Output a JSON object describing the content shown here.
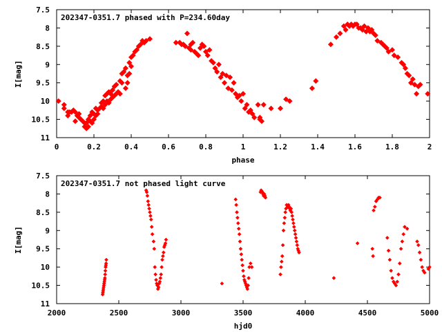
{
  "chart_data": [
    {
      "type": "scatter",
      "title": "202347-0351.7 phased with P=234.60day",
      "xlabel": "phase",
      "ylabel": "I[mag]",
      "xlim": [
        0,
        2
      ],
      "ylim": [
        11,
        7.5
      ],
      "y_inverted": true,
      "x_ticks": [
        "0",
        "0.2",
        "0.4",
        "0.6",
        "0.8",
        "1",
        "1.2",
        "1.4",
        "1.6",
        "1.8",
        "2"
      ],
      "x_tick_values": [
        0,
        0.2,
        0.4,
        0.6,
        0.8,
        1.0,
        1.2,
        1.4,
        1.6,
        1.8,
        2.0
      ],
      "y_ticks": [
        "7.5",
        "8",
        "8.5",
        "9",
        "9.5",
        "10",
        "10.5",
        "11"
      ],
      "y_tick_values": [
        7.5,
        8,
        8.5,
        9,
        9.5,
        10,
        10.5,
        11
      ],
      "grid": false,
      "marker": "filled-diamond",
      "color": "#ff0000",
      "series": [
        {
          "x": [
            0.01,
            0.04,
            0.04,
            0.06,
            0.06,
            0.07,
            0.08,
            0.09,
            0.1,
            0.1,
            0.11,
            0.12,
            0.12,
            0.13,
            0.14,
            0.15,
            0.15,
            0.16,
            0.16,
            0.17,
            0.17,
            0.18,
            0.18,
            0.19,
            0.19,
            0.2,
            0.2,
            0.21,
            0.21,
            0.22,
            0.22,
            0.23,
            0.24,
            0.24,
            0.25,
            0.25,
            0.26,
            0.26,
            0.27,
            0.27,
            0.28,
            0.28,
            0.29,
            0.29,
            0.3,
            0.3,
            0.31,
            0.31,
            0.32,
            0.32,
            0.33,
            0.34,
            0.34,
            0.35,
            0.35,
            0.36,
            0.37,
            0.37,
            0.38,
            0.38,
            0.39,
            0.39,
            0.4,
            0.4,
            0.41,
            0.42,
            0.43,
            0.44,
            0.45,
            0.46,
            0.47,
            0.48,
            0.5,
            0.64,
            0.66,
            0.67,
            0.68,
            0.69,
            0.7,
            0.71,
            0.72,
            0.72,
            0.73,
            0.74,
            0.75,
            0.76,
            0.77,
            0.78,
            0.79,
            0.8,
            0.81,
            0.82,
            0.83,
            0.84,
            0.85,
            0.86,
            0.87,
            0.88,
            0.89,
            0.9,
            0.91,
            0.92,
            0.93,
            0.94,
            0.95,
            0.96,
            0.97,
            0.98,
            0.99,
            1.0,
            1.01,
            1.02,
            1.03,
            1.04,
            1.05,
            1.06,
            1.08,
            1.09,
            1.09,
            1.1,
            1.11,
            1.15,
            1.2,
            1.23,
            1.25,
            1.37,
            1.39,
            1.47,
            1.5,
            1.52,
            1.54,
            1.55,
            1.56,
            1.57,
            1.58,
            1.59,
            1.6,
            1.61,
            1.62,
            1.63,
            1.64,
            1.65,
            1.66,
            1.67,
            1.68,
            1.69,
            1.7,
            1.71,
            1.72,
            1.74,
            1.75,
            1.76,
            1.77,
            1.78,
            1.8,
            1.81,
            1.83,
            1.85,
            1.86,
            1.87,
            1.88,
            1.89,
            1.9,
            1.91,
            1.92,
            1.93,
            1.94,
            1.95,
            1.99
          ],
          "y": [
            10.0,
            10.1,
            10.2,
            10.3,
            10.4,
            10.3,
            10.3,
            10.25,
            10.3,
            10.55,
            10.4,
            10.45,
            10.35,
            10.5,
            10.55,
            10.6,
            10.7,
            10.75,
            10.6,
            10.5,
            10.7,
            10.4,
            10.55,
            10.3,
            10.6,
            10.35,
            10.5,
            10.2,
            10.4,
            10.25,
            10.35,
            10.2,
            10.15,
            10.05,
            10.0,
            10.2,
            9.85,
            10.1,
            9.8,
            10.0,
            9.75,
            10.05,
            9.8,
            9.95,
            9.7,
            9.9,
            9.6,
            9.85,
            9.55,
            9.8,
            9.75,
            9.45,
            9.8,
            9.25,
            9.5,
            9.2,
            9.65,
            9.1,
            9.5,
            9.3,
            8.95,
            9.25,
            8.8,
            9.05,
            8.75,
            8.65,
            8.6,
            8.5,
            8.45,
            8.35,
            8.4,
            8.35,
            8.3,
            8.4,
            8.4,
            8.45,
            8.45,
            8.5,
            8.15,
            8.55,
            8.45,
            8.6,
            8.4,
            8.65,
            8.7,
            8.75,
            8.55,
            8.45,
            8.5,
            8.65,
            8.75,
            8.6,
            8.9,
            8.95,
            9.1,
            9.2,
            9.0,
            9.35,
            9.25,
            9.5,
            9.3,
            9.65,
            9.35,
            9.7,
            9.5,
            9.8,
            9.9,
            9.85,
            10.0,
            9.8,
            10.2,
            10.1,
            10.3,
            10.25,
            10.35,
            10.45,
            10.1,
            10.5,
            10.45,
            10.55,
            10.1,
            10.2,
            10.2,
            9.95,
            10.0,
            9.65,
            9.45,
            8.45,
            8.25,
            8.15,
            7.95,
            8.05,
            7.9,
            7.95,
            7.9,
            7.95,
            7.9,
            7.9,
            8.0,
            8.0,
            8.05,
            7.95,
            8.1,
            8.0,
            8.1,
            8.05,
            8.15,
            8.2,
            8.35,
            8.4,
            8.45,
            8.5,
            8.55,
            8.65,
            8.6,
            8.75,
            8.8,
            8.95,
            9.0,
            9.1,
            9.25,
            9.3,
            9.5,
            9.4,
            9.55,
            9.8,
            9.6,
            9.55,
            9.8
          ]
        }
      ]
    },
    {
      "type": "scatter",
      "title": "202347-0351.7 not phased light curve",
      "xlabel": "hjd0",
      "ylabel": "I[mag]",
      "xlim": [
        2000,
        5000
      ],
      "ylim": [
        11,
        7.5
      ],
      "y_inverted": true,
      "x_ticks": [
        "2000",
        "2500",
        "3000",
        "3500",
        "4000",
        "4500",
        "5000"
      ],
      "x_tick_values": [
        2000,
        2500,
        3000,
        3500,
        4000,
        4500,
        5000
      ],
      "y_ticks": [
        "7.5",
        "8",
        "8.5",
        "9",
        "9.5",
        "10",
        "10.5",
        "11"
      ],
      "y_tick_values": [
        7.5,
        8,
        8.5,
        9,
        9.5,
        10,
        10.5,
        11
      ],
      "grid": false,
      "marker": "small-diamond",
      "color": "#ff0000",
      "series": [
        {
          "x": [
            2370,
            2372,
            2374,
            2376,
            2378,
            2380,
            2382,
            2384,
            2386,
            2388,
            2390,
            2392,
            2394,
            2396,
            2398,
            2400,
            2720,
            2725,
            2730,
            2735,
            2740,
            2745,
            2750,
            2755,
            2760,
            2765,
            2770,
            2780,
            2785,
            2790,
            2795,
            2800,
            2805,
            2810,
            2815,
            2820,
            2825,
            2830,
            2835,
            2840,
            2845,
            2850,
            2855,
            2860,
            2865,
            2870,
            2875,
            2880,
            3330,
            3440,
            3445,
            3450,
            3455,
            3460,
            3465,
            3470,
            3475,
            3480,
            3485,
            3490,
            3495,
            3500,
            3505,
            3510,
            3515,
            3520,
            3525,
            3530,
            3535,
            3540,
            3545,
            3550,
            3560,
            3570,
            3640,
            3645,
            3650,
            3655,
            3660,
            3665,
            3670,
            3675,
            3680,
            3800,
            3805,
            3810,
            3815,
            3820,
            3825,
            3830,
            3835,
            3840,
            3845,
            3850,
            3860,
            3865,
            3870,
            3875,
            3880,
            3885,
            3890,
            3895,
            3900,
            3905,
            3910,
            3915,
            3920,
            3925,
            3930,
            3935,
            3940,
            3945,
            3950,
            4230,
            4420,
            4540,
            4545,
            4550,
            4560,
            4570,
            4580,
            4590,
            4600,
            4660,
            4670,
            4680,
            4690,
            4700,
            4710,
            4720,
            4730,
            4740,
            4750,
            4760,
            4770,
            4780,
            4790,
            4800,
            4820,
            4900,
            4910,
            4920,
            4930,
            4940,
            4950,
            4960,
            4990,
            5000
          ],
          "y": [
            10.75,
            10.7,
            10.65,
            10.6,
            10.55,
            10.5,
            10.45,
            10.4,
            10.35,
            10.3,
            10.2,
            10.1,
            10.0,
            9.95,
            9.9,
            9.8,
            7.9,
            7.95,
            8.05,
            8.2,
            8.3,
            8.4,
            8.5,
            8.6,
            8.7,
            8.9,
            9.1,
            9.3,
            9.5,
            10.0,
            10.2,
            10.35,
            10.45,
            10.5,
            10.6,
            10.55,
            10.45,
            10.4,
            10.3,
            10.2,
            10.0,
            9.8,
            9.7,
            9.6,
            9.45,
            9.4,
            9.35,
            9.25,
            10.45,
            8.15,
            8.3,
            8.5,
            8.65,
            8.8,
            8.95,
            9.1,
            9.3,
            9.5,
            9.65,
            9.8,
            9.95,
            10.1,
            10.25,
            10.35,
            10.4,
            10.45,
            10.5,
            10.55,
            10.6,
            10.5,
            10.3,
            10.0,
            9.9,
            10.0,
            7.95,
            7.9,
            7.92,
            7.95,
            8.0,
            8.05,
            8.0,
            8.05,
            8.1,
            10.2,
            10.0,
            9.85,
            9.7,
            9.4,
            9.0,
            8.8,
            8.65,
            8.5,
            8.4,
            8.3,
            8.35,
            8.3,
            8.35,
            8.4,
            8.45,
            8.4,
            8.5,
            8.6,
            8.7,
            8.8,
            8.9,
            9.0,
            9.1,
            9.2,
            9.3,
            9.4,
            9.5,
            9.55,
            9.6,
            10.3,
            9.35,
            9.5,
            9.7,
            8.45,
            8.35,
            8.2,
            8.15,
            8.1,
            8.1,
            9.2,
            9.55,
            9.8,
            10.1,
            10.3,
            10.4,
            10.45,
            10.5,
            10.4,
            10.2,
            9.9,
            9.5,
            9.3,
            9.1,
            8.9,
            8.95,
            9.3,
            9.4,
            9.6,
            9.8,
            10.0,
            10.1,
            10.15,
            10.05,
            10.0
          ]
        }
      ]
    }
  ]
}
